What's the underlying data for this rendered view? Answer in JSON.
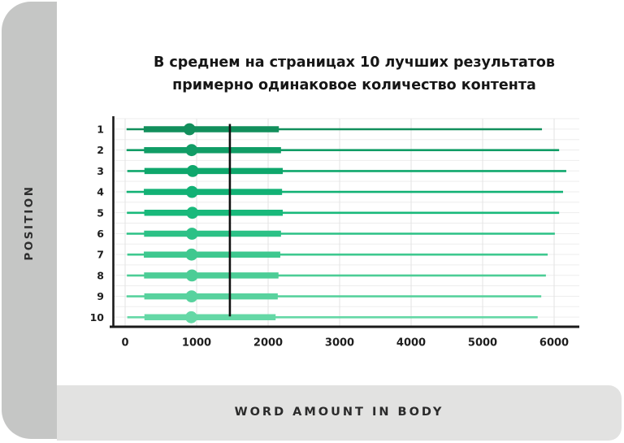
{
  "title": {
    "line1": "В среднем на страницах 10 лучших результатов",
    "line2": "примерно одинаковое количество контента"
  },
  "left_rail": {
    "label": "POSITION"
  },
  "bottom_rail": {
    "label": "WORD AMOUNT IN BODY"
  },
  "colors": {
    "card_bg": "#ffffff",
    "left_rail_bg": "#c5c6c5",
    "bottom_rail_bg": "#e2e2e1",
    "axis": "#1a1a1a",
    "grid_minor": "#ededed",
    "grid_major": "#e3e3e3",
    "marker_line": "#111111"
  },
  "chart_data": {
    "type": "box-whisker-horizontal",
    "title": "В среднем на страницах 10 лучших результатов примерно одинаковое количество контента",
    "xlabel": "WORD AMOUNT IN BODY",
    "ylabel": "POSITION",
    "x_ticks": [
      0,
      1000,
      2000,
      3000,
      4000,
      5000,
      6000
    ],
    "xlim": [
      0,
      6350
    ],
    "grid": true,
    "legend": "none",
    "mean_marker_value": 1465,
    "rows": [
      {
        "position": 1,
        "whisker_min": 20,
        "q1": 260,
        "median": 900,
        "q3": 2150,
        "whisker_max": 5830,
        "color": "#128f5c"
      },
      {
        "position": 2,
        "whisker_min": 20,
        "q1": 265,
        "median": 930,
        "q3": 2180,
        "whisker_max": 6070,
        "color": "#119d66"
      },
      {
        "position": 3,
        "whisker_min": 30,
        "q1": 270,
        "median": 945,
        "q3": 2205,
        "whisker_max": 6170,
        "color": "#0fa76c"
      },
      {
        "position": 4,
        "whisker_min": 20,
        "q1": 262,
        "median": 935,
        "q3": 2195,
        "whisker_max": 6125,
        "color": "#12b175"
      },
      {
        "position": 5,
        "whisker_min": 25,
        "q1": 268,
        "median": 940,
        "q3": 2205,
        "whisker_max": 6070,
        "color": "#19b97b"
      },
      {
        "position": 6,
        "whisker_min": 20,
        "q1": 265,
        "median": 935,
        "q3": 2180,
        "whisker_max": 6010,
        "color": "#2cc186"
      },
      {
        "position": 7,
        "whisker_min": 30,
        "q1": 262,
        "median": 930,
        "q3": 2170,
        "whisker_max": 5910,
        "color": "#3ec88f"
      },
      {
        "position": 8,
        "whisker_min": 25,
        "q1": 265,
        "median": 935,
        "q3": 2145,
        "whisker_max": 5885,
        "color": "#4ccd96"
      },
      {
        "position": 9,
        "whisker_min": 20,
        "q1": 268,
        "median": 930,
        "q3": 2135,
        "whisker_max": 5820,
        "color": "#58d29e"
      },
      {
        "position": 10,
        "whisker_min": 30,
        "q1": 270,
        "median": 925,
        "q3": 2105,
        "whisker_max": 5770,
        "color": "#65d8a6"
      }
    ]
  }
}
